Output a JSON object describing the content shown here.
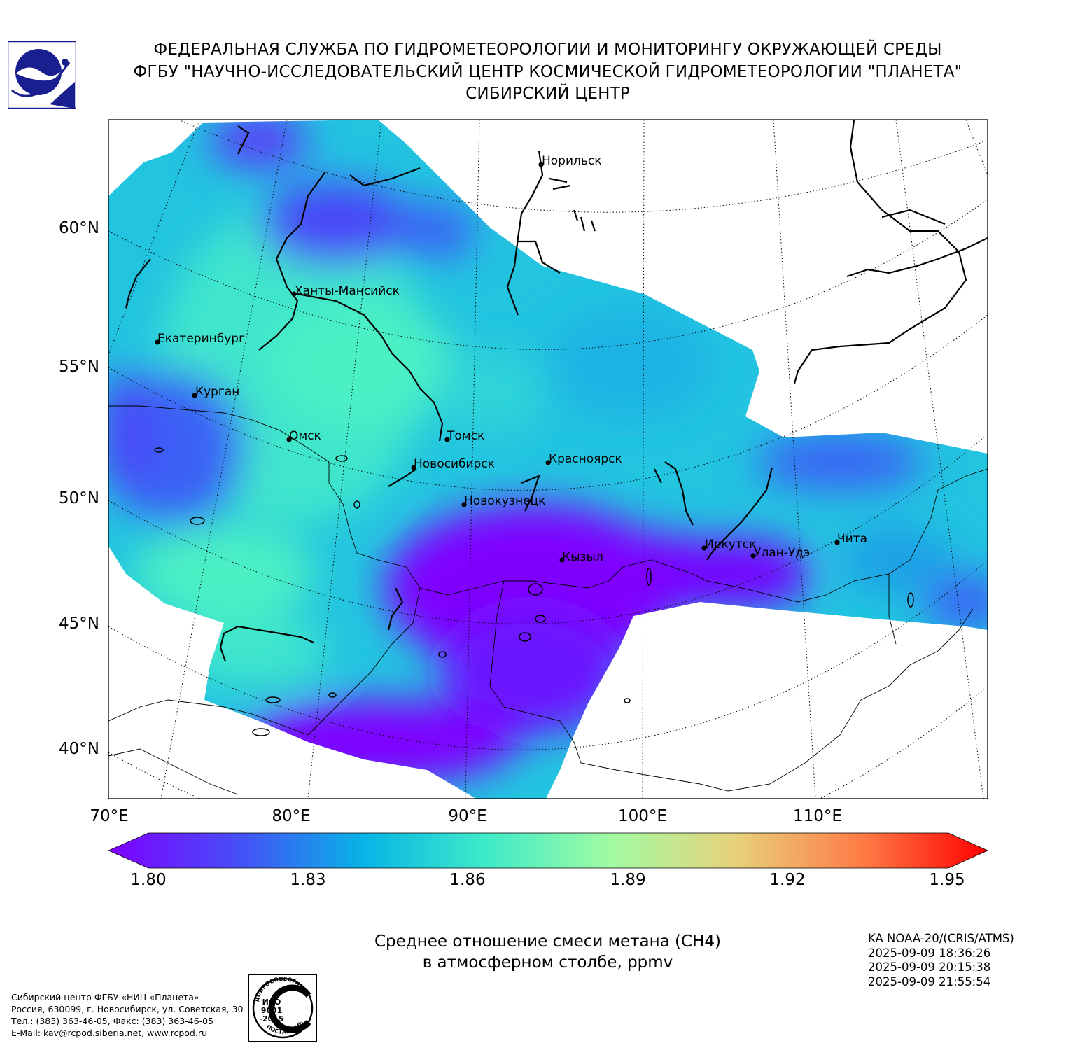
{
  "header": {
    "line1": "ФЕДЕРАЛЬНАЯ СЛУЖБА ПО ГИДРОМЕТЕОРОЛОГИИ И МОНИТОРИНГУ ОКРУЖАЮЩЕЙ СРЕДЫ",
    "line2": "ФГБУ \"НАУЧНО-ИССЛЕДОВАТЕЛЬСКИЙ ЦЕНТР КОСМИЧЕСКОЙ ГИДРОМЕТЕОРОЛОГИИ \"ПЛАНЕТА\"",
    "line3": "СИБИРСКИЙ ЦЕНТР"
  },
  "map": {
    "lat_labels": [
      "60°N",
      "55°N",
      "50°N",
      "45°N",
      "40°N"
    ],
    "lon_labels": [
      "70°E",
      "80°E",
      "90°E",
      "100°E",
      "110°E"
    ],
    "cities": [
      {
        "name": "Норильск"
      },
      {
        "name": "Ханты-Мансийск"
      },
      {
        "name": "Екатеринбург"
      },
      {
        "name": "Курган"
      },
      {
        "name": "Омск"
      },
      {
        "name": "Томск"
      },
      {
        "name": "Новосибирск"
      },
      {
        "name": "Красноярск"
      },
      {
        "name": "Новокузнецк"
      },
      {
        "name": "Кызыл"
      },
      {
        "name": "Иркутск"
      },
      {
        "name": "Улан-Удэ"
      },
      {
        "name": "Чита"
      }
    ],
    "colors": {
      "low": "#7f00ff",
      "mid_low": "#3b62f5",
      "mid": "#0fb9e5",
      "mid_high": "#4cf0c4",
      "high": "#ff0000"
    }
  },
  "colorbar": {
    "min": 1.8,
    "max": 1.95,
    "ticks": [
      "1.80",
      "1.83",
      "1.86",
      "1.89",
      "1.92",
      "1.95"
    ],
    "colormap": "rainbow"
  },
  "caption": {
    "line1": "Среднее отношение смеси метана (CH4)",
    "line2": "в атмосферном столбе, ppmv"
  },
  "satellite": {
    "name": "KA NOAA-20/(CRIS/ATMS)",
    "passes": [
      "2025-09-09 18:36:26",
      "2025-09-09 20:15:38",
      "2025-09-09 21:55:54"
    ]
  },
  "contacts": {
    "line1": "Сибирский центр ФГБУ «НИЦ «Планета»",
    "line2": "Россия, 630099, г. Новосибирск, ул. Советская, 30",
    "line3": "Тел.: (383) 363-46-05, Факс: (383) 363-46-05",
    "line4": "E-Mail: kav@rcpod.siberia.net, www.rcpod.ru"
  },
  "iso_stamp": {
    "top_text": "ДОБРОСОВЕСТНЫЙ",
    "code1": "ИСО",
    "code2": "9001",
    "code3": "-2015",
    "bottom_text": "ПОСТАВЩИК"
  }
}
